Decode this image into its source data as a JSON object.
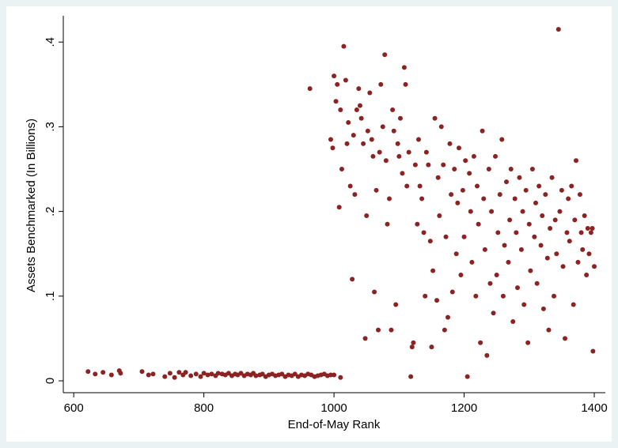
{
  "chart_data": {
    "type": "scatter",
    "x_label": "End-of-May Rank",
    "y_label": "Assets Benchmarked (In Billions)",
    "color": "#8b2323",
    "xlim": [
      584,
      1417
    ],
    "ylim": [
      -0.014,
      0.431
    ],
    "xticks": [
      600,
      800,
      1000,
      1200,
      1400
    ],
    "yticks": [
      0,
      {
        "value": 0.1,
        "label": ".1"
      },
      {
        "value": 0.2,
        "label": ".2"
      },
      {
        "value": 0.3,
        "label": ".3"
      },
      {
        "value": 0.4,
        "label": ".4"
      }
    ],
    "x": [
      622,
      633,
      645,
      658,
      670,
      672,
      705,
      715,
      722,
      740,
      748,
      755,
      762,
      768,
      772,
      780,
      788,
      795,
      800,
      806,
      812,
      818,
      822,
      828,
      833,
      838,
      843,
      848,
      852,
      857,
      862,
      867,
      872,
      876,
      880,
      886,
      890,
      895,
      900,
      905,
      910,
      915,
      920,
      925,
      930,
      935,
      940,
      945,
      950,
      955,
      960,
      965,
      970,
      975,
      980,
      985,
      990,
      995,
      1000,
      1010,
      963,
      995,
      998,
      1000,
      1003,
      1005,
      1008,
      1010,
      1012,
      1015,
      1018,
      1020,
      1022,
      1025,
      1028,
      1030,
      1032,
      1035,
      1038,
      1040,
      1042,
      1045,
      1048,
      1050,
      1052,
      1055,
      1058,
      1060,
      1062,
      1065,
      1068,
      1070,
      1072,
      1075,
      1078,
      1080,
      1082,
      1085,
      1088,
      1090,
      1092,
      1095,
      1098,
      1100,
      1102,
      1105,
      1108,
      1110,
      1112,
      1115,
      1118,
      1120,
      1122,
      1125,
      1128,
      1130,
      1132,
      1135,
      1138,
      1140,
      1142,
      1145,
      1148,
      1150,
      1152,
      1155,
      1158,
      1160,
      1162,
      1165,
      1168,
      1170,
      1172,
      1175,
      1178,
      1180,
      1182,
      1185,
      1188,
      1190,
      1192,
      1195,
      1198,
      1200,
      1202,
      1205,
      1208,
      1210,
      1212,
      1215,
      1218,
      1220,
      1222,
      1225,
      1228,
      1230,
      1232,
      1235,
      1238,
      1240,
      1242,
      1245,
      1248,
      1250,
      1252,
      1255,
      1258,
      1260,
      1262,
      1265,
      1268,
      1270,
      1272,
      1275,
      1278,
      1280,
      1282,
      1285,
      1288,
      1290,
      1292,
      1295,
      1298,
      1300,
      1302,
      1305,
      1308,
      1310,
      1312,
      1315,
      1318,
      1320,
      1322,
      1325,
      1328,
      1330,
      1332,
      1335,
      1338,
      1340,
      1342,
      1345,
      1347,
      1350,
      1352,
      1355,
      1358,
      1360,
      1362,
      1365,
      1368,
      1370,
      1372,
      1375,
      1378,
      1380,
      1382,
      1385,
      1388,
      1390,
      1392,
      1395,
      1398,
      1400,
      1397
    ],
    "values": [
      0.011,
      0.008,
      0.01,
      0.007,
      0.012,
      0.009,
      0.011,
      0.007,
      0.008,
      0.005,
      0.009,
      0.004,
      0.01,
      0.007,
      0.01,
      0.006,
      0.008,
      0.005,
      0.009,
      0.007,
      0.008,
      0.006,
      0.009,
      0.008,
      0.007,
      0.009,
      0.006,
      0.008,
      0.007,
      0.009,
      0.006,
      0.008,
      0.007,
      0.009,
      0.006,
      0.007,
      0.008,
      0.005,
      0.007,
      0.008,
      0.006,
      0.007,
      0.008,
      0.005,
      0.007,
      0.006,
      0.008,
      0.005,
      0.007,
      0.006,
      0.008,
      0.007,
      0.005,
      0.006,
      0.007,
      0.008,
      0.006,
      0.007,
      0.007,
      0.004,
      0.345,
      0.285,
      0.275,
      0.36,
      0.33,
      0.35,
      0.205,
      0.32,
      0.25,
      0.395,
      0.355,
      0.28,
      0.305,
      0.23,
      0.12,
      0.29,
      0.22,
      0.32,
      0.345,
      0.325,
      0.31,
      0.28,
      0.05,
      0.195,
      0.295,
      0.34,
      0.285,
      0.265,
      0.105,
      0.225,
      0.06,
      0.27,
      0.35,
      0.3,
      0.385,
      0.26,
      0.185,
      0.215,
      0.06,
      0.32,
      0.295,
      0.09,
      0.28,
      0.265,
      0.31,
      0.245,
      0.37,
      0.35,
      0.23,
      0.27,
      0.005,
      0.04,
      0.045,
      0.255,
      0.185,
      0.285,
      0.23,
      0.215,
      0.175,
      0.1,
      0.27,
      0.255,
      0.165,
      0.04,
      0.13,
      0.31,
      0.095,
      0.24,
      0.195,
      0.3,
      0.255,
      0.06,
      0.17,
      0.075,
      0.28,
      0.22,
      0.105,
      0.25,
      0.15,
      0.21,
      0.275,
      0.125,
      0.225,
      0.17,
      0.26,
      0.005,
      0.245,
      0.2,
      0.14,
      0.265,
      0.1,
      0.23,
      0.185,
      0.045,
      0.295,
      0.215,
      0.155,
      0.03,
      0.25,
      0.115,
      0.2,
      0.08,
      0.265,
      0.125,
      0.175,
      0.22,
      0.285,
      0.1,
      0.16,
      0.235,
      0.14,
      0.19,
      0.25,
      0.07,
      0.215,
      0.175,
      0.11,
      0.24,
      0.155,
      0.2,
      0.09,
      0.225,
      0.045,
      0.185,
      0.13,
      0.25,
      0.17,
      0.21,
      0.115,
      0.23,
      0.16,
      0.195,
      0.085,
      0.22,
      0.145,
      0.06,
      0.18,
      0.24,
      0.1,
      0.19,
      0.15,
      0.415,
      0.2,
      0.225,
      0.135,
      0.05,
      0.175,
      0.215,
      0.165,
      0.23,
      0.09,
      0.19,
      0.26,
      0.14,
      0.22,
      0.175,
      0.155,
      0.195,
      0.125,
      0.18,
      0.15,
      0.175,
      0.035,
      0.135,
      0.18
    ]
  }
}
